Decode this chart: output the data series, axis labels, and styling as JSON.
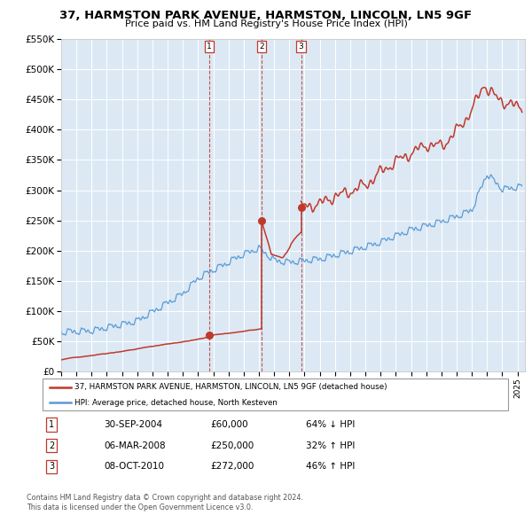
{
  "title": "37, HARMSTON PARK AVENUE, HARMSTON, LINCOLN, LN5 9GF",
  "subtitle": "Price paid vs. HM Land Registry's House Price Index (HPI)",
  "background_color": "#dce9f5",
  "ylim": [
    0,
    550000
  ],
  "yticks": [
    0,
    50000,
    100000,
    150000,
    200000,
    250000,
    300000,
    350000,
    400000,
    450000,
    500000,
    550000
  ],
  "ytick_labels": [
    "£0",
    "£50K",
    "£100K",
    "£150K",
    "£200K",
    "£250K",
    "£300K",
    "£350K",
    "£400K",
    "£450K",
    "£500K",
    "£550K"
  ],
  "xlim_start": 1995.0,
  "xlim_end": 2025.5,
  "red_color": "#c0392b",
  "blue_color": "#5b9bd5",
  "purchases": [
    {
      "num": 1,
      "date": "30-SEP-2004",
      "price": 60000,
      "pct": "64%",
      "dir": "↓",
      "x_year": 2004.75
    },
    {
      "num": 2,
      "date": "06-MAR-2008",
      "price": 250000,
      "pct": "32%",
      "dir": "↑",
      "x_year": 2008.17
    },
    {
      "num": 3,
      "date": "08-OCT-2010",
      "price": 272000,
      "pct": "46%",
      "dir": "↑",
      "x_year": 2010.77
    }
  ],
  "legend_line1": "37, HARMSTON PARK AVENUE, HARMSTON, LINCOLN, LN5 9GF (detached house)",
  "legend_line2": "HPI: Average price, detached house, North Kesteven",
  "footer1": "Contains HM Land Registry data © Crown copyright and database right 2024.",
  "footer2": "This data is licensed under the Open Government Licence v3.0."
}
